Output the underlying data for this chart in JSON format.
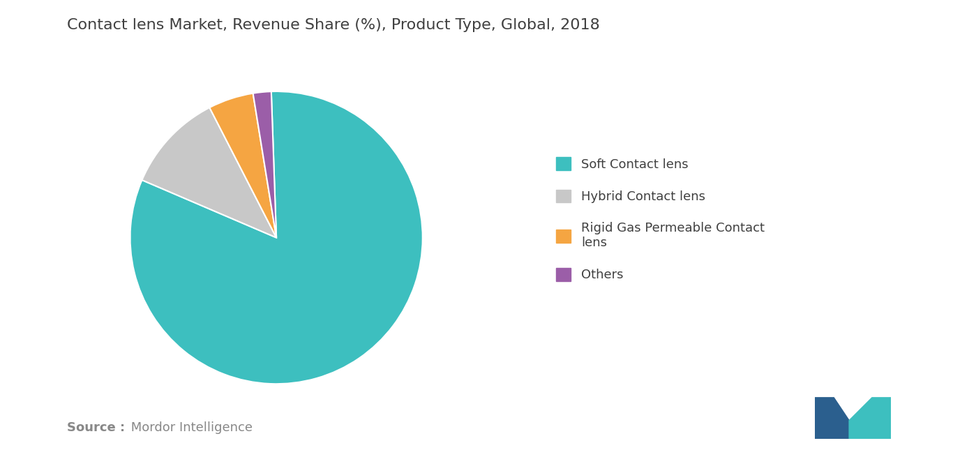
{
  "title": "Contact lens Market, Revenue Share (%), Product Type, Global, 2018",
  "slices": [
    {
      "label": "Soft Contact lens",
      "value": 82,
      "color": "#3DBFBF"
    },
    {
      "label": "Hybrid Contact lens",
      "value": 11,
      "color": "#C8C8C8"
    },
    {
      "label": "Rigid Gas Permeable Contact\nlens",
      "value": 5,
      "color": "#F5A542"
    },
    {
      "label": "Others",
      "value": 2,
      "color": "#9B5EA8"
    }
  ],
  "background_color": "#FFFFFF",
  "title_color": "#404040",
  "title_fontsize": 16,
  "legend_fontsize": 13,
  "source_bold": "Source :",
  "source_regular": " Mordor Intelligence",
  "source_color": "#888888",
  "source_fontsize": 13
}
